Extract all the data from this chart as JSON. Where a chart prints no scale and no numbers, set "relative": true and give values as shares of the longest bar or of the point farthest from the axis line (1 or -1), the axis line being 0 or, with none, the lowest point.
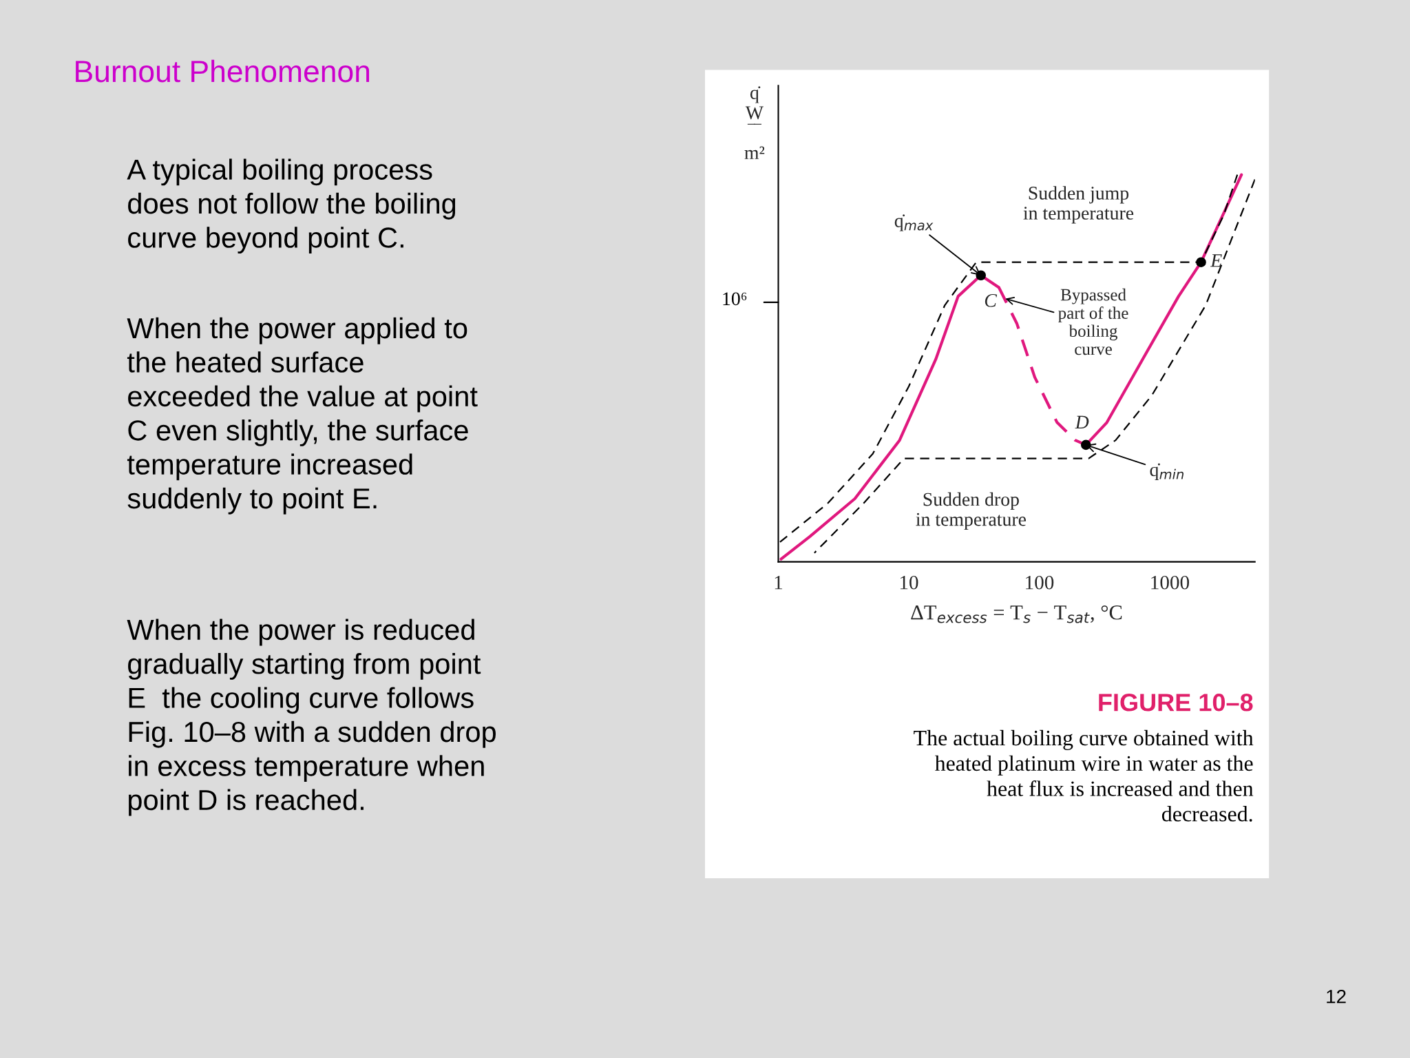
{
  "chart_data": {
    "type": "line",
    "title": "Burnout Phenomenon",
    "xlabel": "ΔT$_{excess}$ = T$_{s}$ − T$_{sat}$, °C",
    "ylabel": "q̇\nW\n‾‾\nm²",
    "log": "x",
    "xlim": [
      1,
      4500
    ],
    "xticks": [
      1,
      10,
      100,
      1000
    ],
    "relative": true,
    "grid": false,
    "legend": false,
    "series": [
      {
        "color": "#e0187e",
        "line_style": "solid",
        "x": [
          1.05,
          1.74,
          3.86,
          8.5,
          16.1,
          23.9,
          35.7,
          49,
          100,
          228,
          330,
          620,
          1170,
          1740,
          3550
        ],
        "values": [
          0.007,
          0.065,
          0.163,
          0.314,
          0.523,
          0.686,
          0.74,
          0.709,
          null,
          0.302,
          0.36,
          0.523,
          0.686,
          0.774,
          1.0
        ]
      },
      {
        "color": "#e0187e",
        "line_style": "dashed",
        "x": [
          49,
          67.3,
          92.4,
          137,
          189,
          228
        ],
        "values": [
          0.709,
          0.616,
          0.477,
          0.36,
          0.314,
          0.302
        ]
      },
      {
        "color": "#000000",
        "line_style": "dashed",
        "x": [
          1.03,
          2.39,
          5.3,
          10,
          18.9,
          32.9,
          1740,
          2590,
          3300
        ],
        "values": [
          0.051,
          0.151,
          0.279,
          0.453,
          0.663,
          0.774,
          0.774,
          0.895,
          1.0
        ]
      },
      {
        "color": "#000000",
        "line_style": "dashed",
        "x": [
          4500,
          1890,
          730,
          385,
          239,
          9.2,
          4.5,
          1.89
        ],
        "values": [
          0.988,
          0.663,
          0.43,
          0.314,
          0.267,
          0.267,
          0.151,
          0.023
        ]
      },
      {
        "type": "scatter",
        "marker": "circle",
        "color": "#000000",
        "x": [
          35.7,
          228,
          1740
        ],
        "values": [
          0.74,
          0.302,
          0.774
        ]
      }
    ],
    "annotations": [
      "A typical boiling process\ndoes not follow the boiling\ncurve beyond point C.",
      "When the power applied to\nthe heated surface\nexceeded the value at point\nC even slightly, the surface\ntemperature increased\nsuddenly to point E.",
      "When the power is reduced\ngradually starting from point\nE  the cooling curve follows\nFig. 10–8 with a sudden drop\nin excess temperature when\npoint D is reached.",
      "FIGURE 10–8",
      "The actual boiling curve obtained with\nheated platinum wire in water as the\nheat flux is increased and then\ndecreased.",
      "12",
      {
        "text": "C",
        "x": 35.7,
        "y": 0.74
      },
      {
        "text": "D",
        "x": 228,
        "y": 0.302
      },
      {
        "text": "E",
        "x": 1740,
        "y": 0.774
      },
      {
        "text": "q̇$_{max}$",
        "x": 35.7,
        "y": 0.74
      },
      {
        "text": "q̇$_{min}$",
        "x": 228,
        "y": 0.302
      },
      {
        "text": "Sudden jump\nin temperature",
        "x": 200,
        "y": 0.774
      },
      {
        "text": "Bypassed\npart of the\nboiling\ncurve",
        "x": 55,
        "y": 0.68
      },
      {
        "text": "Sudden drop\nin temperature",
        "x": 30,
        "y": 0.267
      },
      "10⁶"
    ]
  }
}
